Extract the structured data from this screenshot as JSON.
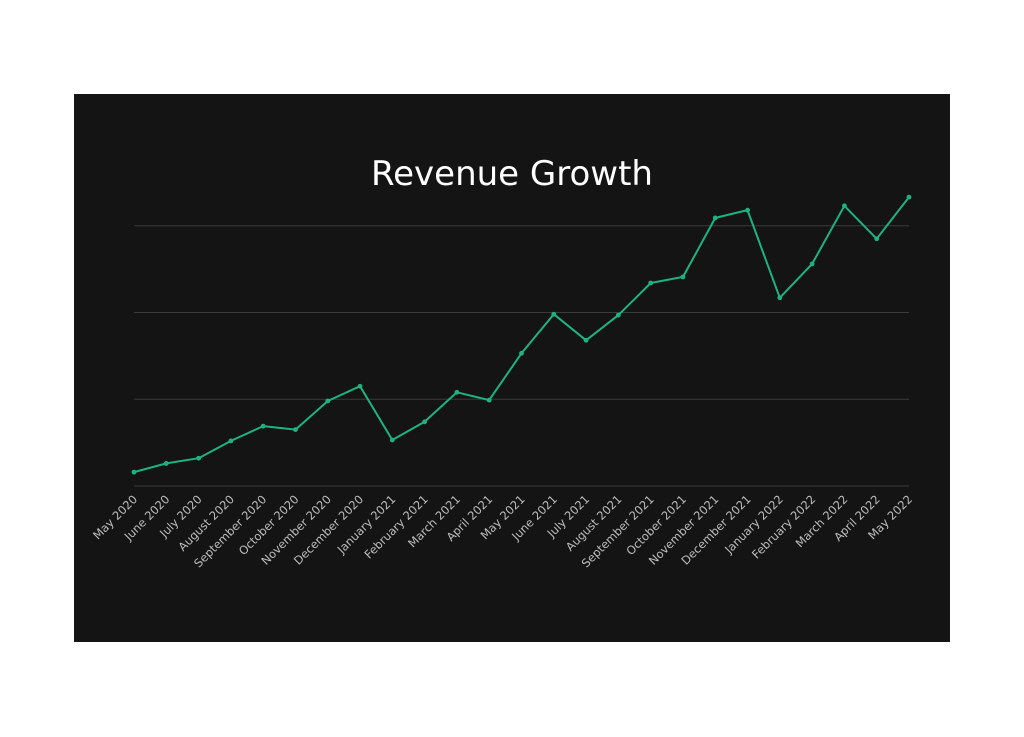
{
  "chart_data": {
    "type": "line",
    "title": "Revenue Growth",
    "xlabel": "",
    "ylabel": "",
    "grid": true,
    "categories": [
      "May 2020",
      "June 2020",
      "July 2020",
      "August 2020",
      "September 2020",
      "October 2020",
      "November 2020",
      "December 2020",
      "January 2021",
      "February 2021",
      "March 2021",
      "April 2021",
      "May 2021",
      "June 2021",
      "July 2021",
      "August 2021",
      "September 2021",
      "October 2021",
      "November 2021",
      "December 2021",
      "January 2022",
      "February 2022",
      "March 2022",
      "April 2022",
      "May 2022"
    ],
    "series": [
      {
        "values": [
          0.16,
          0.26,
          0.32,
          0.52,
          0.69,
          0.65,
          0.98,
          1.15,
          0.53,
          0.74,
          1.08,
          0.99,
          1.53,
          1.98,
          1.68,
          1.97,
          2.34,
          2.41,
          3.09,
          3.18,
          2.17,
          2.56,
          3.23,
          2.85,
          3.33
        ]
      }
    ],
    "ylim": [
      0,
      4
    ],
    "colors": {
      "line": "#1db37e",
      "grid": "#3a3a3a",
      "background": "#141414",
      "title": "#ffffff",
      "ticks": "#bdbdbd"
    }
  }
}
